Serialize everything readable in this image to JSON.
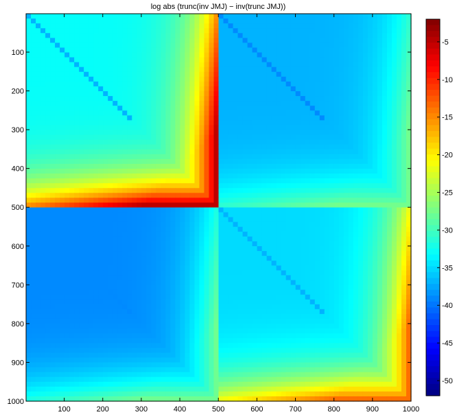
{
  "chart_data": {
    "type": "heatmap",
    "title": "log abs (trunc(inv JMJ) − inv(trunc JMJ))",
    "xlabel": "",
    "ylabel": "",
    "xlim": [
      1,
      1000
    ],
    "ylim": [
      1,
      1000
    ],
    "y_axis_direction": "reversed",
    "grid": false,
    "matrix_size": 1000,
    "block_boundary": 500,
    "x_ticks": [
      "100",
      "200",
      "300",
      "400",
      "500",
      "600",
      "700",
      "800",
      "900",
      "1000"
    ],
    "y_ticks": [
      "100",
      "200",
      "300",
      "400",
      "500",
      "600",
      "700",
      "800",
      "900",
      "1000"
    ],
    "colorbar": {
      "colormap": "jet",
      "range": [
        -52,
        -2
      ],
      "ticks": [
        "-5",
        "-10",
        "-15",
        "-20",
        "-25",
        "-30",
        "-35",
        "-40",
        "-45",
        "-50"
      ],
      "position": "right"
    },
    "value_range": [
      -52,
      -2
    ],
    "blocks": [
      {
        "name": "top-left",
        "rows": [
          1,
          500
        ],
        "cols": [
          1,
          500
        ],
        "far_corner_value": -3,
        "diagonal_value": -37,
        "background_value": -33
      },
      {
        "name": "top-right",
        "rows": [
          1,
          500
        ],
        "cols": [
          501,
          1000
        ],
        "far_corner_value": -27,
        "diagonal_value": -39,
        "background_value": -37
      },
      {
        "name": "bottom-left",
        "rows": [
          501,
          1000
        ],
        "cols": [
          1,
          500
        ],
        "far_corner_value": -27,
        "diagonal_value": -39,
        "background_value": -39
      },
      {
        "name": "bottom-right",
        "rows": [
          501,
          1000
        ],
        "cols": [
          501,
          1000
        ],
        "far_corner_value": -12,
        "diagonal_value": -37,
        "background_value": -35
      }
    ],
    "separator_value": -47
  }
}
